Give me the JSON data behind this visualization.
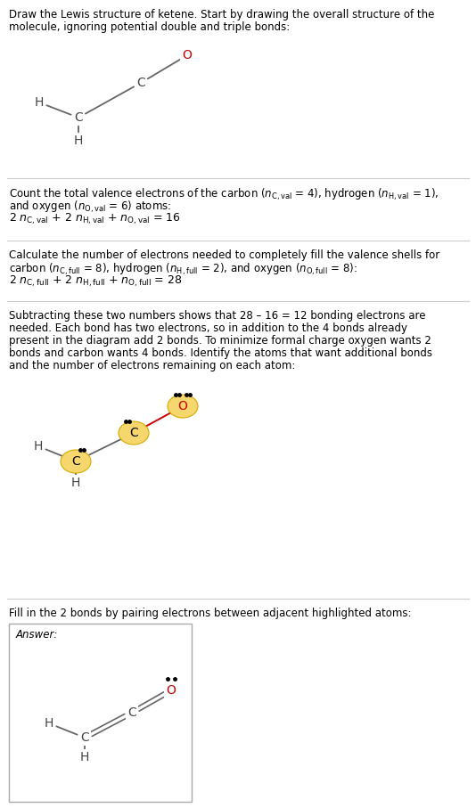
{
  "bg_color": "#ffffff",
  "divider_color": "#cccccc",
  "highlight_color": "#f5d76e",
  "highlight_border": "#d4aa00",
  "atom_O_color": "#cc0000",
  "atom_C_color": "#444444",
  "atom_H_color": "#444444",
  "bond_color": "#666666",
  "bond_highlight_color": "#cc0000",
  "dot_color": "#000000",
  "section1_lines": [
    "Draw the Lewis structure of ketene. Start by drawing the overall structure of the",
    "molecule, ignoring potential double and triple bonds:"
  ],
  "section2_line1": "Count the total valence electrons of the carbon (",
  "section2_line2": "and oxygen (",
  "section2_formula": "2 ",
  "section3_line1": "Calculate the number of electrons needed to completely fill the valence shells for",
  "section3_line2": "carbon (",
  "section3_formula": "2 ",
  "section4_lines": [
    "Subtracting these two numbers shows that 28 – 16 = 12 bonding electrons are",
    "needed. Each bond has two electrons, so in addition to the 4 bonds already",
    "present in the diagram add 2 bonds. To minimize formal charge oxygen wants 2",
    "bonds and carbon wants 4 bonds. Identify the atoms that want additional bonds",
    "and the number of electrons remaining on each atom:"
  ],
  "fill_line": "Fill in the 2 bonds by pairing electrons between adjacent highlighted atoms:",
  "answer_label": "Answer:"
}
